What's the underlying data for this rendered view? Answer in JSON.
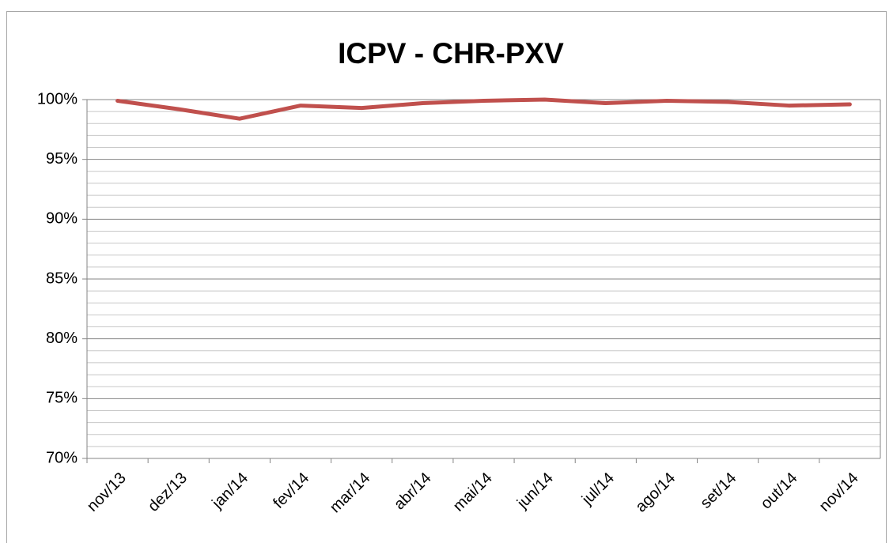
{
  "chart_data": {
    "type": "line",
    "title": "ICPV - CHR-PXV",
    "categories": [
      "nov/13",
      "dez/13",
      "jan/14",
      "fev/14",
      "mar/14",
      "abr/14",
      "mai/14",
      "jun/14",
      "jul/14",
      "ago/14",
      "set/14",
      "out/14",
      "nov/14"
    ],
    "series": [
      {
        "name": "ICPV",
        "color": "#c0504d",
        "values": [
          99.9,
          99.2,
          98.4,
          99.5,
          99.3,
          99.7,
          99.9,
          100,
          99.7,
          99.9,
          99.8,
          99.5,
          99.6
        ]
      }
    ],
    "ylim": [
      70,
      100
    ],
    "yticks": [
      {
        "value": 70,
        "label": "70%"
      },
      {
        "value": 75,
        "label": "75%"
      },
      {
        "value": 80,
        "label": "80%"
      },
      {
        "value": 85,
        "label": "85%"
      },
      {
        "value": 90,
        "label": "90%"
      },
      {
        "value": 95,
        "label": "95%"
      },
      {
        "value": 100,
        "label": "100%"
      }
    ],
    "minor_yticks": [
      71,
      72,
      73,
      74,
      76,
      77,
      78,
      79,
      81,
      82,
      83,
      84,
      86,
      87,
      88,
      89,
      91,
      92,
      93,
      94,
      96,
      97,
      98,
      99
    ],
    "grid": true
  }
}
